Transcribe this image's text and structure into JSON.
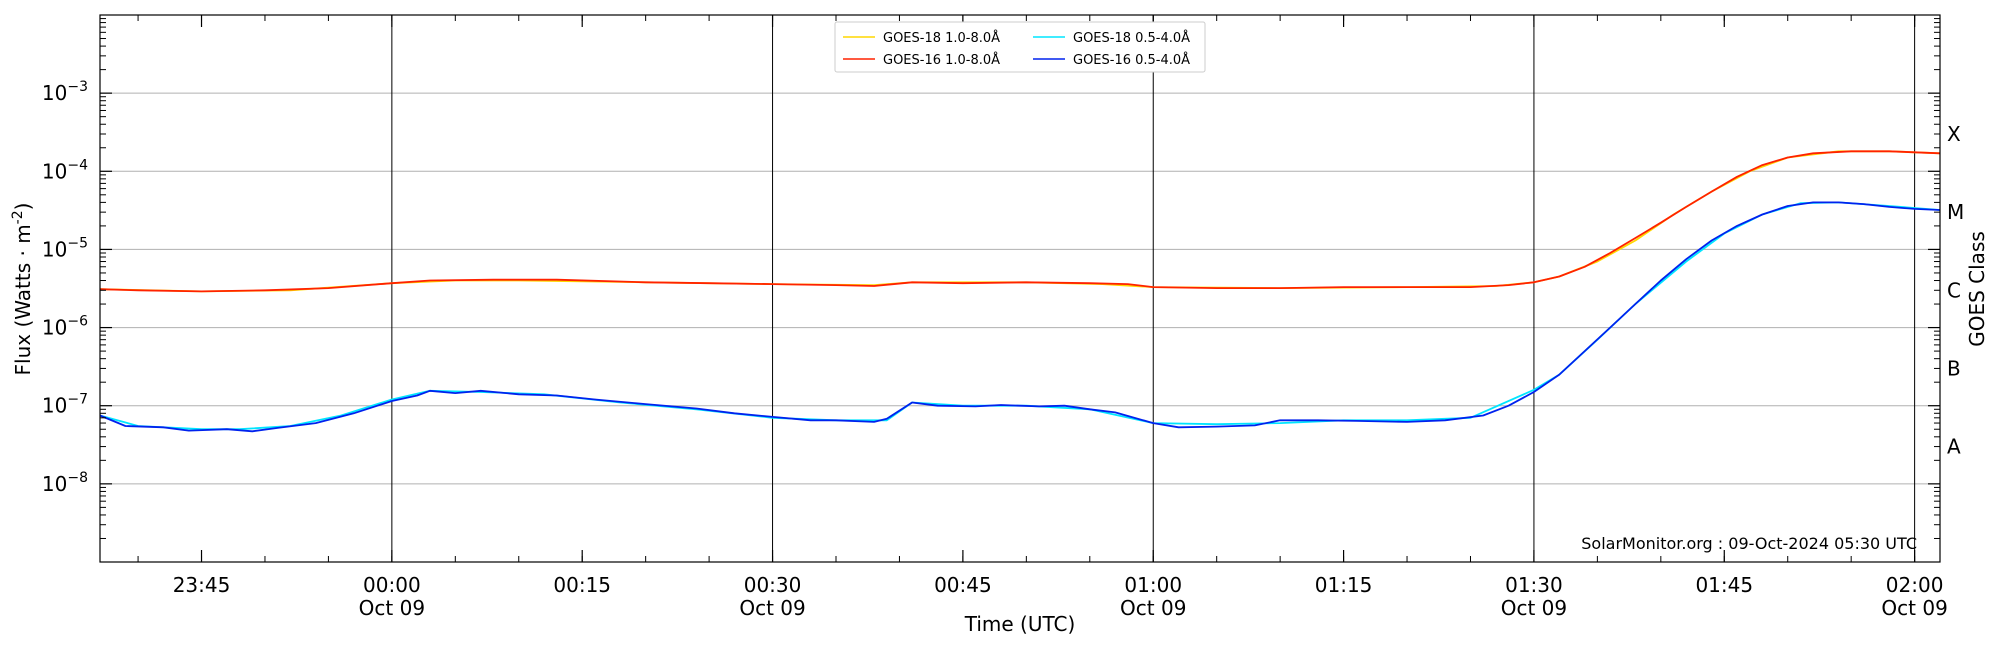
{
  "chart_data": {
    "type": "line",
    "title": "",
    "xlabel": "Time (UTC)",
    "ylabel": "Flux (Watts · m",
    "ylabel_sup": "-2",
    "ylabel_suffix": ")",
    "y2label": "GOES Class",
    "yscale": "log",
    "ylim": [
      1e-09,
      0.01
    ],
    "xlim": [
      "2024-10-08 23:37",
      "2024-10-09 02:02"
    ],
    "grid": "horizontal at decades; vertical lines at half hours",
    "legend_position": "top-center",
    "watermark": "SolarMonitor.org : 09-Oct-2024 05:30 UTC",
    "y_ticks": [
      {
        "value": 1e-08,
        "base": "10",
        "exp": "−8"
      },
      {
        "value": 1e-07,
        "base": "10",
        "exp": "−7"
      },
      {
        "value": 1e-06,
        "base": "10",
        "exp": "−6"
      },
      {
        "value": 1e-05,
        "base": "10",
        "exp": "−5"
      },
      {
        "value": 0.0001,
        "base": "10",
        "exp": "−4"
      },
      {
        "value": 0.001,
        "base": "10",
        "exp": "−3"
      }
    ],
    "class_ticks": [
      {
        "label": "A",
        "value": 3e-08
      },
      {
        "label": "B",
        "value": 3e-07
      },
      {
        "label": "C",
        "value": 3e-06
      },
      {
        "label": "M",
        "value": 3e-05
      },
      {
        "label": "X",
        "value": 0.0003
      }
    ],
    "x_ticks": [
      {
        "time": "23:45",
        "date": ""
      },
      {
        "time": "00:00",
        "date": "Oct 09"
      },
      {
        "time": "00:15",
        "date": ""
      },
      {
        "time": "00:30",
        "date": "Oct 09"
      },
      {
        "time": "00:45",
        "date": ""
      },
      {
        "time": "01:00",
        "date": "Oct 09"
      },
      {
        "time": "01:15",
        "date": ""
      },
      {
        "time": "01:30",
        "date": "Oct 09"
      },
      {
        "time": "01:45",
        "date": ""
      },
      {
        "time": "02:00",
        "date": "Oct 09"
      }
    ],
    "series": [
      {
        "name": "GOES-18 1.0-8.0Å",
        "color": "#ffd700",
        "values": [
          [
            "2024-10-08 23:37",
            3.1e-06
          ],
          [
            "2024-10-08 23:45",
            2.9e-06
          ],
          [
            "2024-10-08 23:52",
            3e-06
          ],
          [
            "2024-10-09 00:00",
            3.7e-06
          ],
          [
            "2024-10-09 00:05",
            4e-06
          ],
          [
            "2024-10-09 00:10",
            4e-06
          ],
          [
            "2024-10-09 00:20",
            3.8e-06
          ],
          [
            "2024-10-09 00:30",
            3.6e-06
          ],
          [
            "2024-10-09 00:38",
            3.5e-06
          ],
          [
            "2024-10-09 00:41",
            3.8e-06
          ],
          [
            "2024-10-09 00:50",
            3.8e-06
          ],
          [
            "2024-10-09 00:56",
            3.6e-06
          ],
          [
            "2024-10-09 01:00",
            3.3e-06
          ],
          [
            "2024-10-09 01:10",
            3.2e-06
          ],
          [
            "2024-10-09 01:20",
            3.3e-06
          ],
          [
            "2024-10-09 01:27",
            3.4e-06
          ],
          [
            "2024-10-09 01:30",
            3.8e-06
          ],
          [
            "2024-10-09 01:32",
            4.5e-06
          ],
          [
            "2024-10-09 01:35",
            7e-06
          ],
          [
            "2024-10-09 01:38",
            1.3e-05
          ],
          [
            "2024-10-09 01:41",
            2.8e-05
          ],
          [
            "2024-10-09 01:44",
            5.5e-05
          ],
          [
            "2024-10-09 01:47",
            0.0001
          ],
          [
            "2024-10-09 01:50",
            0.00015
          ],
          [
            "2024-10-09 01:54",
            0.00018
          ],
          [
            "2024-10-09 01:58",
            0.00018
          ],
          [
            "2024-10-09 02:02",
            0.00017
          ]
        ]
      },
      {
        "name": "GOES-16 1.0-8.0Å",
        "color": "#ff2200",
        "values": [
          [
            "2024-10-08 23:37",
            3.1e-06
          ],
          [
            "2024-10-08 23:40",
            3e-06
          ],
          [
            "2024-10-08 23:45",
            2.9e-06
          ],
          [
            "2024-10-08 23:50",
            3e-06
          ],
          [
            "2024-10-08 23:55",
            3.2e-06
          ],
          [
            "2024-10-09 00:00",
            3.7e-06
          ],
          [
            "2024-10-09 00:03",
            4e-06
          ],
          [
            "2024-10-09 00:08",
            4.1e-06
          ],
          [
            "2024-10-09 00:13",
            4.1e-06
          ],
          [
            "2024-10-09 00:20",
            3.8e-06
          ],
          [
            "2024-10-09 00:25",
            3.7e-06
          ],
          [
            "2024-10-09 00:30",
            3.6e-06
          ],
          [
            "2024-10-09 00:35",
            3.5e-06
          ],
          [
            "2024-10-09 00:38",
            3.4e-06
          ],
          [
            "2024-10-09 00:41",
            3.8e-06
          ],
          [
            "2024-10-09 00:45",
            3.7e-06
          ],
          [
            "2024-10-09 00:50",
            3.8e-06
          ],
          [
            "2024-10-09 00:55",
            3.7e-06
          ],
          [
            "2024-10-09 00:58",
            3.6e-06
          ],
          [
            "2024-10-09 01:00",
            3.3e-06
          ],
          [
            "2024-10-09 01:05",
            3.2e-06
          ],
          [
            "2024-10-09 01:10",
            3.2e-06
          ],
          [
            "2024-10-09 01:15",
            3.3e-06
          ],
          [
            "2024-10-09 01:20",
            3.3e-06
          ],
          [
            "2024-10-09 01:25",
            3.3e-06
          ],
          [
            "2024-10-09 01:28",
            3.5e-06
          ],
          [
            "2024-10-09 01:30",
            3.8e-06
          ],
          [
            "2024-10-09 01:32",
            4.5e-06
          ],
          [
            "2024-10-09 01:34",
            6e-06
          ],
          [
            "2024-10-09 01:36",
            9e-06
          ],
          [
            "2024-10-09 01:38",
            1.4e-05
          ],
          [
            "2024-10-09 01:40",
            2.2e-05
          ],
          [
            "2024-10-09 01:42",
            3.5e-05
          ],
          [
            "2024-10-09 01:44",
            5.5e-05
          ],
          [
            "2024-10-09 01:46",
            8.5e-05
          ],
          [
            "2024-10-09 01:48",
            0.00012
          ],
          [
            "2024-10-09 01:50",
            0.00015
          ],
          [
            "2024-10-09 01:52",
            0.00017
          ],
          [
            "2024-10-09 01:55",
            0.00018
          ],
          [
            "2024-10-09 01:58",
            0.00018
          ],
          [
            "2024-10-09 02:00",
            0.000175
          ],
          [
            "2024-10-09 02:02",
            0.00017
          ]
        ]
      },
      {
        "name": "GOES-18 0.5-4.0Å",
        "color": "#00e5ff",
        "values": [
          [
            "2024-10-08 23:37",
            7.5e-08
          ],
          [
            "2024-10-08 23:40",
            5.5e-08
          ],
          [
            "2024-10-08 23:45",
            5e-08
          ],
          [
            "2024-10-08 23:48",
            5e-08
          ],
          [
            "2024-10-08 23:52",
            5.5e-08
          ],
          [
            "2024-10-08 23:56",
            7.5e-08
          ],
          [
            "2024-10-09 00:00",
            1.2e-07
          ],
          [
            "2024-10-09 00:03",
            1.55e-07
          ],
          [
            "2024-10-09 00:07",
            1.5e-07
          ],
          [
            "2024-10-09 00:12",
            1.4e-07
          ],
          [
            "2024-10-09 00:18",
            1.1e-07
          ],
          [
            "2024-10-09 00:24",
            9e-08
          ],
          [
            "2024-10-09 00:30",
            7e-08
          ],
          [
            "2024-10-09 00:35",
            6.5e-08
          ],
          [
            "2024-10-09 00:39",
            6.5e-08
          ],
          [
            "2024-10-09 00:41",
            1.1e-07
          ],
          [
            "2024-10-09 00:45",
            1e-07
          ],
          [
            "2024-10-09 00:50",
            1e-07
          ],
          [
            "2024-10-09 00:55",
            9e-08
          ],
          [
            "2024-10-09 01:00",
            6e-08
          ],
          [
            "2024-10-09 01:05",
            5.8e-08
          ],
          [
            "2024-10-09 01:10",
            6e-08
          ],
          [
            "2024-10-09 01:15",
            6.5e-08
          ],
          [
            "2024-10-09 01:20",
            6.5e-08
          ],
          [
            "2024-10-09 01:25",
            7e-08
          ],
          [
            "2024-10-09 01:30",
            1.6e-07
          ],
          [
            "2024-10-09 01:32",
            2.5e-07
          ],
          [
            "2024-10-09 01:35",
            7e-07
          ],
          [
            "2024-10-09 01:38",
            2e-06
          ],
          [
            "2024-10-09 01:42",
            7e-06
          ],
          [
            "2024-10-09 01:45",
            1.6e-05
          ],
          [
            "2024-10-09 01:48",
            2.8e-05
          ],
          [
            "2024-10-09 01:51",
            3.9e-05
          ],
          [
            "2024-10-09 01:54",
            4e-05
          ],
          [
            "2024-10-09 01:58",
            3.6e-05
          ],
          [
            "2024-10-09 02:02",
            3.2e-05
          ]
        ]
      },
      {
        "name": "GOES-16 0.5-4.0Å",
        "color": "#0022ee",
        "values": [
          [
            "2024-10-08 23:37",
            7.5e-08
          ],
          [
            "2024-10-08 23:39",
            5.5e-08
          ],
          [
            "2024-10-08 23:42",
            5.3e-08
          ],
          [
            "2024-10-08 23:44",
            4.8e-08
          ],
          [
            "2024-10-08 23:47",
            5e-08
          ],
          [
            "2024-10-08 23:49",
            4.7e-08
          ],
          [
            "2024-10-08 23:51",
            5.2e-08
          ],
          [
            "2024-10-08 23:54",
            6e-08
          ],
          [
            "2024-10-08 23:57",
            8e-08
          ],
          [
            "2024-10-09 00:00",
            1.15e-07
          ],
          [
            "2024-10-09 00:02",
            1.35e-07
          ],
          [
            "2024-10-09 00:03",
            1.55e-07
          ],
          [
            "2024-10-09 00:05",
            1.45e-07
          ],
          [
            "2024-10-09 00:07",
            1.55e-07
          ],
          [
            "2024-10-09 00:10",
            1.4e-07
          ],
          [
            "2024-10-09 00:13",
            1.35e-07
          ],
          [
            "2024-10-09 00:16",
            1.2e-07
          ],
          [
            "2024-10-09 00:20",
            1.05e-07
          ],
          [
            "2024-10-09 00:24",
            9.2e-08
          ],
          [
            "2024-10-09 00:27",
            8e-08
          ],
          [
            "2024-10-09 00:30",
            7.2e-08
          ],
          [
            "2024-10-09 00:33",
            6.5e-08
          ],
          [
            "2024-10-09 00:35",
            6.5e-08
          ],
          [
            "2024-10-09 00:38",
            6.2e-08
          ],
          [
            "2024-10-09 00:39",
            6.8e-08
          ],
          [
            "2024-10-09 00:41",
            1.1e-07
          ],
          [
            "2024-10-09 00:43",
            1e-07
          ],
          [
            "2024-10-09 00:46",
            9.8e-08
          ],
          [
            "2024-10-09 00:48",
            1.02e-07
          ],
          [
            "2024-10-09 00:51",
            9.8e-08
          ],
          [
            "2024-10-09 00:53",
            1e-07
          ],
          [
            "2024-10-09 00:55",
            9e-08
          ],
          [
            "2024-10-09 00:57",
            8.2e-08
          ],
          [
            "2024-10-09 01:00",
            6e-08
          ],
          [
            "2024-10-09 01:02",
            5.3e-08
          ],
          [
            "2024-10-09 01:05",
            5.4e-08
          ],
          [
            "2024-10-09 01:08",
            5.6e-08
          ],
          [
            "2024-10-09 01:10",
            6.5e-08
          ],
          [
            "2024-10-09 01:13",
            6.5e-08
          ],
          [
            "2024-10-09 01:16",
            6.4e-08
          ],
          [
            "2024-10-09 01:20",
            6.2e-08
          ],
          [
            "2024-10-09 01:23",
            6.5e-08
          ],
          [
            "2024-10-09 01:26",
            7.5e-08
          ],
          [
            "2024-10-09 01:28",
            1e-07
          ],
          [
            "2024-10-09 01:30",
            1.5e-07
          ],
          [
            "2024-10-09 01:32",
            2.5e-07
          ],
          [
            "2024-10-09 01:34",
            5e-07
          ],
          [
            "2024-10-09 01:36",
            1e-06
          ],
          [
            "2024-10-09 01:38",
            2e-06
          ],
          [
            "2024-10-09 01:40",
            4e-06
          ],
          [
            "2024-10-09 01:42",
            7.5e-06
          ],
          [
            "2024-10-09 01:44",
            1.3e-05
          ],
          [
            "2024-10-09 01:46",
            2e-05
          ],
          [
            "2024-10-09 01:48",
            2.8e-05
          ],
          [
            "2024-10-09 01:50",
            3.6e-05
          ],
          [
            "2024-10-09 01:52",
            4e-05
          ],
          [
            "2024-10-09 01:54",
            4e-05
          ],
          [
            "2024-10-09 01:56",
            3.8e-05
          ],
          [
            "2024-10-09 01:58",
            3.5e-05
          ],
          [
            "2024-10-09 02:00",
            3.3e-05
          ],
          [
            "2024-10-09 02:02",
            3.2e-05
          ]
        ]
      }
    ]
  }
}
